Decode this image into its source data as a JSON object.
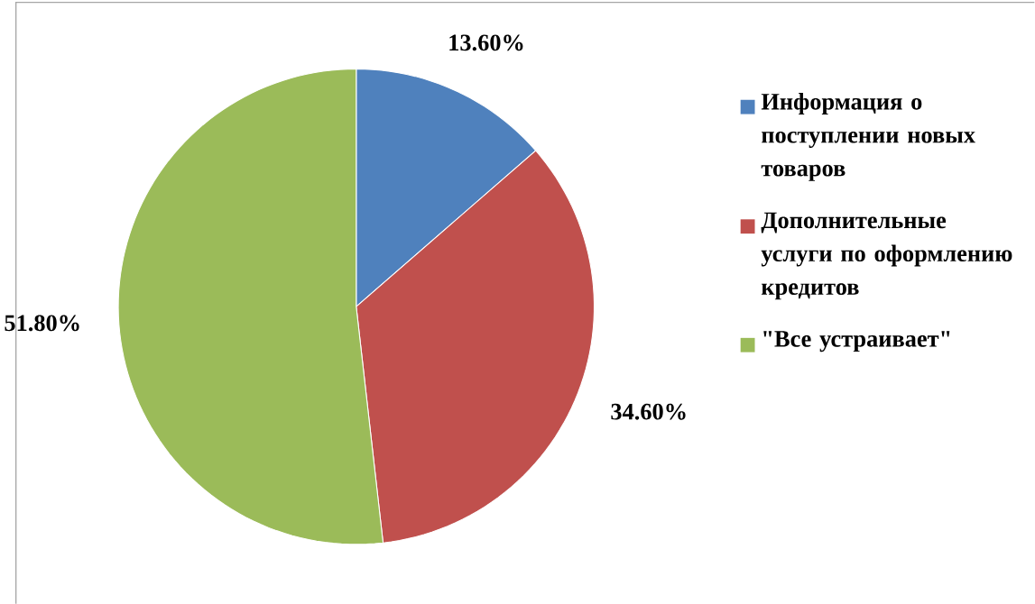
{
  "chart_data": {
    "type": "pie",
    "categories": [
      "Информация о поступлении новых товаров",
      "Дополнительные услуги по оформлению кредитов",
      "\"Все устраивает\""
    ],
    "values": [
      13.6,
      34.6,
      51.8
    ],
    "colors": [
      "#4f81bd",
      "#c0504d",
      "#9bbb59"
    ],
    "value_labels": [
      "13.60%",
      "34.60%",
      "51.80%"
    ],
    "legend": "right"
  }
}
